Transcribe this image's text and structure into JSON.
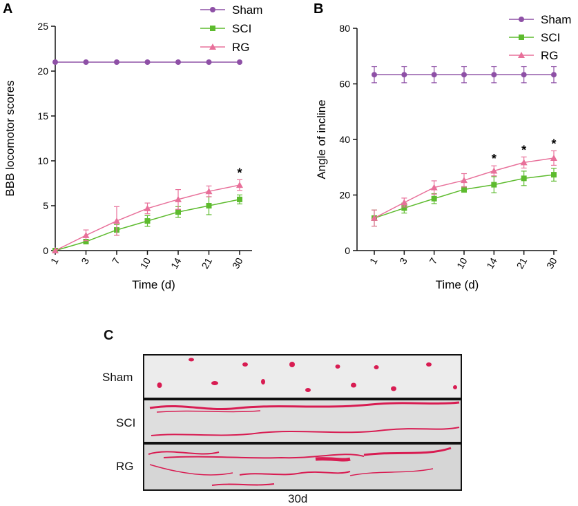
{
  "colors": {
    "sham": "#8e50a6",
    "sci": "#5dbb2e",
    "rg": "#e8709a",
    "axis": "#111111"
  },
  "chart_data": [
    {
      "panel": "A",
      "type": "line",
      "x": [
        "1",
        "3",
        "7",
        "10",
        "14",
        "21",
        "30"
      ],
      "xlabel": "Time (d)",
      "ylabel": "BBB locomotor scores",
      "ylim": [
        0,
        25
      ],
      "yticks": [
        "0",
        "5",
        "10",
        "15",
        "20",
        "25"
      ],
      "legend_position": "top-right",
      "series": [
        {
          "name": "Sham",
          "marker": "circle",
          "color": "#8e50a6",
          "values": [
            21,
            21,
            21,
            21,
            21,
            21,
            21
          ],
          "errors": [
            0,
            0,
            0,
            0,
            0,
            0,
            0
          ]
        },
        {
          "name": "SCI",
          "marker": "square",
          "color": "#5dbb2e",
          "values": [
            0,
            1.0,
            2.3,
            3.3,
            4.3,
            5.0,
            5.7
          ],
          "errors": [
            0,
            0.1,
            0.6,
            0.6,
            0.6,
            1.0,
            0.5
          ]
        },
        {
          "name": "RG",
          "marker": "triangle",
          "color": "#e8709a",
          "values": [
            0,
            1.7,
            3.3,
            4.7,
            5.7,
            6.6,
            7.3
          ],
          "errors": [
            0,
            0.6,
            1.6,
            0.6,
            1.1,
            0.6,
            0.6
          ]
        }
      ],
      "annotations": [
        {
          "x_index": 6,
          "text": "*",
          "series": "RG"
        }
      ]
    },
    {
      "panel": "B",
      "type": "line",
      "x": [
        "1",
        "3",
        "7",
        "10",
        "14",
        "21",
        "30"
      ],
      "xlabel": "Time (d)",
      "ylabel": "Angle of incline",
      "ylim": [
        0,
        80
      ],
      "yticks": [
        "0",
        "20",
        "40",
        "60",
        "80"
      ],
      "legend_position": "top-right",
      "series": [
        {
          "name": "Sham",
          "marker": "circle",
          "color": "#8e50a6",
          "values": [
            63.3,
            63.3,
            63.3,
            63.3,
            63.3,
            63.3,
            63.3
          ],
          "errors": [
            2.9,
            2.9,
            2.9,
            2.9,
            2.9,
            2.9,
            2.9
          ]
        },
        {
          "name": "SCI",
          "marker": "square",
          "color": "#5dbb2e",
          "values": [
            11.7,
            15.3,
            18.7,
            22.0,
            23.7,
            26.0,
            27.3
          ],
          "errors": [
            2.9,
            1.8,
            1.8,
            1.0,
            2.9,
            2.6,
            2.3
          ]
        },
        {
          "name": "RG",
          "marker": "triangle",
          "color": "#e8709a",
          "values": [
            11.7,
            17.3,
            22.7,
            25.3,
            28.7,
            31.7,
            33.3
          ],
          "errors": [
            2.9,
            1.6,
            2.4,
            2.4,
            1.8,
            2.0,
            2.6
          ]
        }
      ],
      "annotations": [
        {
          "x_index": 4,
          "text": "*",
          "series": "RG"
        },
        {
          "x_index": 5,
          "text": "*",
          "series": "RG"
        },
        {
          "x_index": 6,
          "text": "*",
          "series": "RG"
        }
      ]
    }
  ],
  "panel_c": {
    "label": "C",
    "rows": [
      "Sham",
      "SCI",
      "RG"
    ],
    "caption": "30d"
  }
}
